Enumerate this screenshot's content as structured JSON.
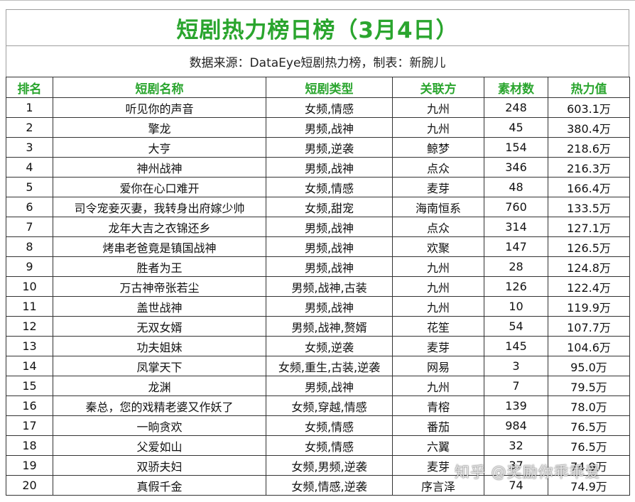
{
  "title": "短剧热力榜日榜（3月4日）",
  "source": "数据来源：DataEye短剧热力榜，制表：新腕儿",
  "columns": [
    "排名",
    "短剧名称",
    "短剧类型",
    "关联方",
    "素材数",
    "热力值"
  ],
  "rows": [
    [
      "1",
      "听见你的声音",
      "女频,情感",
      "九州",
      "248",
      "603.1万"
    ],
    [
      "2",
      "擎龙",
      "男频,战神",
      "九州",
      "45",
      "380.4万"
    ],
    [
      "3",
      "大亨",
      "男频,逆袭",
      "鲸梦",
      "154",
      "218.6万"
    ],
    [
      "4",
      "神州战神",
      "男频,战神",
      "点众",
      "346",
      "216.3万"
    ],
    [
      "5",
      "爱你在心口难开",
      "女频,情感",
      "麦芽",
      "48",
      "166.4万"
    ],
    [
      "6",
      "司令宠妾灭妻，我转身出府嫁少帅",
      "女频,甜宠",
      "海南恒系",
      "760",
      "133.5万"
    ],
    [
      "7",
      "龙年大吉之衣锦还乡",
      "男频,战神",
      "点众",
      "314",
      "127.1万"
    ],
    [
      "8",
      "烤串老爸竟是镇国战神",
      "男频,战神",
      "欢聚",
      "147",
      "126.5万"
    ],
    [
      "9",
      "胜者为王",
      "男频,战神",
      "九州",
      "28",
      "124.8万"
    ],
    [
      "10",
      "万古神帝张若尘",
      "男频,战神,古装",
      "九州",
      "126",
      "122.4万"
    ],
    [
      "11",
      "盖世战神",
      "男频,战神",
      "九州",
      "10",
      "119.9万"
    ],
    [
      "12",
      "无双女婿",
      "男频,战神,赘婿",
      "花笙",
      "54",
      "107.7万"
    ],
    [
      "13",
      "功夫姐妹",
      "女频,逆袭",
      "麦芽",
      "145",
      "104.6万"
    ],
    [
      "14",
      "凤掌天下",
      "女频,重生,古装,逆袭",
      "网易",
      "3",
      "95.0万"
    ],
    [
      "15",
      "龙渊",
      "男频,战神",
      "九州",
      "7",
      "79.5万"
    ],
    [
      "16",
      "秦总，您的戏精老婆又作妖了",
      "女频,穿越,情感",
      "青榕",
      "139",
      "78.0万"
    ],
    [
      "17",
      "一晌贪欢",
      "女频,情感",
      "番茄",
      "984",
      "76.5万"
    ],
    [
      "18",
      "父爱如山",
      "女频,情感",
      "六翼",
      "32",
      "76.5万"
    ],
    [
      "19",
      "双骄夫妇",
      "女频,男频,逆袭",
      "麦芽",
      "37",
      "74.9万"
    ],
    [
      "20",
      "真假千金",
      "女频,情感,逆袭",
      "序言泽",
      "74",
      "74.9万"
    ]
  ],
  "watermark": "知乎 @奖励你乖乖爱",
  "colors": {
    "header_green": "#2aa52e",
    "grid": "#333333"
  }
}
